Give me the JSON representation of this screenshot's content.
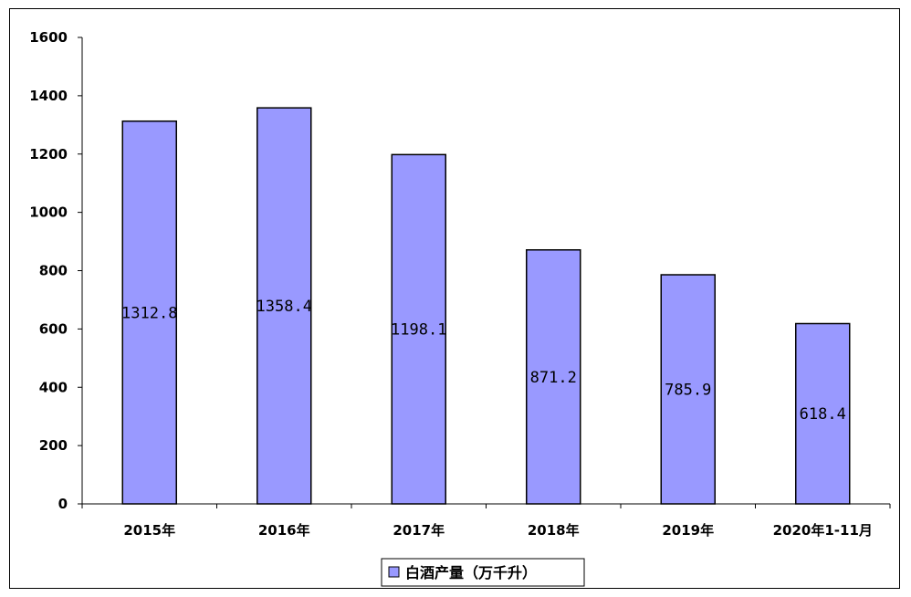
{
  "chart_data": {
    "type": "bar",
    "categories": [
      "2015年",
      "2016年",
      "2017年",
      "2018年",
      "2019年",
      "2020年1-11月"
    ],
    "series": [
      {
        "name": "白酒产量（万千升）",
        "values": [
          1312.8,
          1358.4,
          1198.1,
          871.2,
          785.9,
          618.4
        ],
        "color": "#9999ff"
      }
    ],
    "data_labels": [
      "1312.8",
      "1358.4",
      "1198.1",
      "871.2",
      "785.9",
      "618.4"
    ],
    "ylim": [
      0,
      1600
    ],
    "yticks": [
      0,
      200,
      400,
      600,
      800,
      1000,
      1200,
      1400,
      1600
    ],
    "grid": false,
    "legend_position": "bottom-center"
  }
}
